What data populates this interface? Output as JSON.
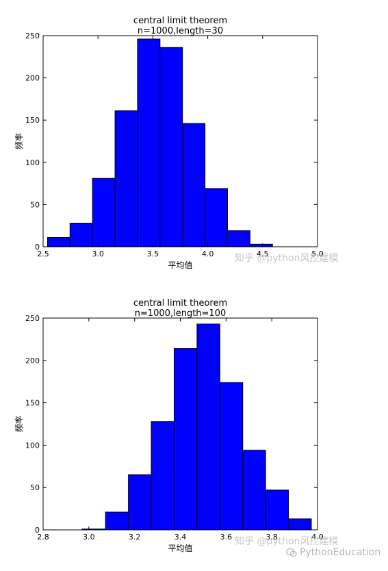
{
  "chart_data": [
    {
      "type": "bar",
      "title": "central limit theorem",
      "subtitle": "n=1000,length=30",
      "xlabel": "平均值",
      "ylabel": "频率",
      "xlim": [
        2.5,
        5.0
      ],
      "ylim": [
        0,
        250
      ],
      "xticks": [
        "2.5",
        "3.0",
        "3.5",
        "4.0",
        "4.5",
        "5.0"
      ],
      "yticks": [
        "0",
        "50",
        "100",
        "150",
        "200",
        "250"
      ],
      "bins": [
        {
          "x0": 2.54,
          "x1": 2.745,
          "count": 11
        },
        {
          "x0": 2.745,
          "x1": 2.95,
          "count": 28
        },
        {
          "x0": 2.95,
          "x1": 3.155,
          "count": 81
        },
        {
          "x0": 3.155,
          "x1": 3.36,
          "count": 161
        },
        {
          "x0": 3.36,
          "x1": 3.565,
          "count": 246
        },
        {
          "x0": 3.565,
          "x1": 3.77,
          "count": 236
        },
        {
          "x0": 3.77,
          "x1": 3.975,
          "count": 146
        },
        {
          "x0": 3.975,
          "x1": 4.18,
          "count": 69
        },
        {
          "x0": 4.18,
          "x1": 4.385,
          "count": 19
        },
        {
          "x0": 4.385,
          "x1": 4.59,
          "count": 3
        }
      ],
      "color": "#0000ff",
      "grid": false
    },
    {
      "type": "bar",
      "title": "central limit theorem",
      "subtitle": "n=1000,length=100",
      "xlabel": "平均值",
      "ylabel": "频率",
      "xlim": [
        2.8,
        4.0
      ],
      "ylim": [
        0,
        250
      ],
      "xticks": [
        "2.8",
        "3.0",
        "3.2",
        "3.4",
        "3.6",
        "3.8",
        "4.0"
      ],
      "yticks": [
        "0",
        "50",
        "100",
        "150",
        "200",
        "250"
      ],
      "bins": [
        {
          "x0": 2.97,
          "x1": 3.073,
          "count": 1
        },
        {
          "x0": 3.073,
          "x1": 3.173,
          "count": 21
        },
        {
          "x0": 3.173,
          "x1": 3.273,
          "count": 65
        },
        {
          "x0": 3.273,
          "x1": 3.373,
          "count": 128
        },
        {
          "x0": 3.373,
          "x1": 3.473,
          "count": 214
        },
        {
          "x0": 3.473,
          "x1": 3.573,
          "count": 243
        },
        {
          "x0": 3.573,
          "x1": 3.673,
          "count": 174
        },
        {
          "x0": 3.673,
          "x1": 3.773,
          "count": 94
        },
        {
          "x0": 3.773,
          "x1": 3.873,
          "count": 47
        },
        {
          "x0": 3.873,
          "x1": 3.973,
          "count": 13
        }
      ],
      "color": "#0000ff",
      "grid": false
    }
  ],
  "watermarks": {
    "zhihu_top": "知乎 @python风控建模",
    "zhihu_bottom": "知乎 @python风控建模",
    "wechat": "PythonEducation"
  }
}
